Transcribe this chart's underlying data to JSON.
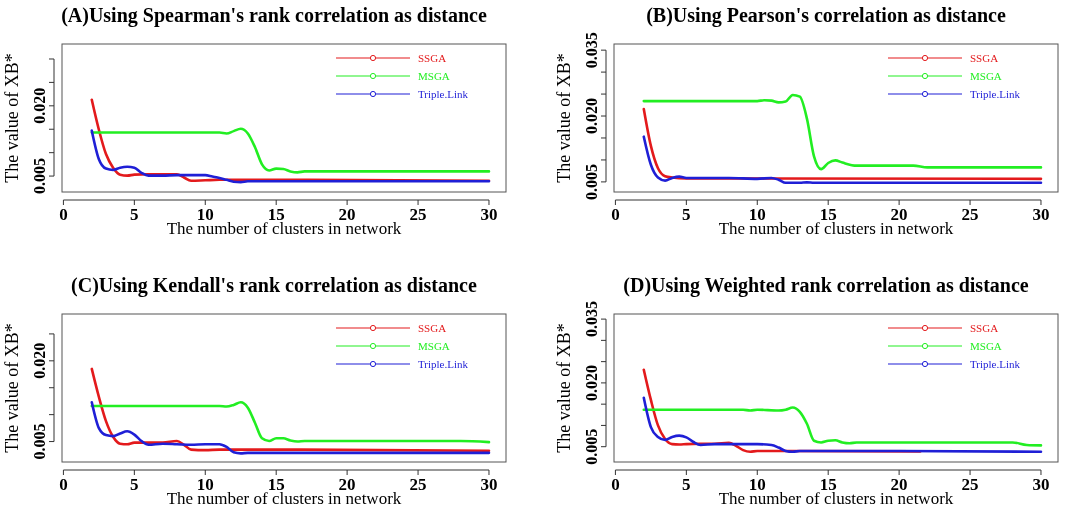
{
  "chart_data": [
    {
      "type": "line",
      "title": "(A)Using Spearman's rank correlation as distance",
      "xlabel": "The number of clusters in network",
      "ylabel": "The value of XB*",
      "xlim": [
        -0.1,
        31.2
      ],
      "xticks": [
        0,
        5,
        10,
        15,
        20,
        25,
        30
      ],
      "ylim": [
        0.0016,
        0.0332
      ],
      "yticks": [
        {
          "value": 0.005,
          "label": "0.005"
        },
        {
          "value": 0.01,
          "label": null
        },
        {
          "value": 0.015,
          "label": null
        },
        {
          "value": 0.02,
          "label": "0.020"
        },
        {
          "value": 0.025,
          "label": null
        },
        {
          "value": 0.03,
          "label": null
        }
      ],
      "legend": "top right",
      "series": [
        {
          "name": "SSGA",
          "color": "#e31a1c",
          "x": [
            2,
            2.5,
            3,
            3.5,
            4,
            4.5,
            5,
            6,
            7,
            8,
            8.5,
            9,
            10,
            11,
            15,
            30
          ],
          "values": [
            0.0213,
            0.0149,
            0.0097,
            0.0068,
            0.0053,
            0.0051,
            0.0053,
            0.0054,
            0.0054,
            0.0054,
            0.0047,
            0.004,
            0.0041,
            0.0042,
            0.0042,
            0.004
          ]
        },
        {
          "name": "MSGA",
          "color": "#22ee22",
          "x": [
            2,
            11,
            11.5,
            12,
            12.5,
            13,
            13.5,
            14,
            14.5,
            15,
            15.5,
            16,
            16.5,
            17,
            18,
            30
          ],
          "values": [
            0.0143,
            0.0143,
            0.0141,
            0.0146,
            0.0151,
            0.0141,
            0.0112,
            0.0075,
            0.0062,
            0.0066,
            0.0065,
            0.006,
            0.0058,
            0.006,
            0.006,
            0.006
          ]
        },
        {
          "name": "Triple.Link",
          "color": "#1f1fd6",
          "x": [
            2,
            2.5,
            3,
            3.5,
            4,
            4.5,
            5,
            5.5,
            6,
            7,
            8,
            9,
            10,
            10.5,
            11,
            11.5,
            12,
            12.5,
            13,
            15,
            30
          ],
          "values": [
            0.0147,
            0.0086,
            0.0066,
            0.0063,
            0.0068,
            0.007,
            0.0068,
            0.0057,
            0.0051,
            0.0051,
            0.0052,
            0.0052,
            0.0052,
            0.0049,
            0.0046,
            0.0042,
            0.0038,
            0.0037,
            0.0039,
            0.0039,
            0.0039
          ]
        }
      ]
    },
    {
      "type": "line",
      "title": "(B)Using Pearson's correlation as distance",
      "xlabel": "The number of clusters in network",
      "ylabel": "The value of XB*",
      "xlim": [
        -0.1,
        31.2
      ],
      "xticks": [
        0,
        5,
        10,
        15,
        20,
        25,
        30
      ],
      "ylim": [
        0.0027,
        0.0364
      ],
      "yticks": [
        {
          "value": 0.005,
          "label": "0.005"
        },
        {
          "value": 0.01,
          "label": null
        },
        {
          "value": 0.015,
          "label": null
        },
        {
          "value": 0.02,
          "label": "0.020"
        },
        {
          "value": 0.025,
          "label": null
        },
        {
          "value": 0.03,
          "label": null
        },
        {
          "value": 0.035,
          "label": "0.035"
        }
      ],
      "legend": "top right",
      "series": [
        {
          "name": "SSGA",
          "color": "#e31a1c",
          "x": [
            2,
            2.5,
            3,
            3.5,
            4,
            5,
            30
          ],
          "values": [
            0.0216,
            0.0132,
            0.0081,
            0.0063,
            0.006,
            0.0058,
            0.0057
          ]
        },
        {
          "name": "MSGA",
          "color": "#22ee22",
          "x": [
            2,
            10,
            10.5,
            11,
            11.5,
            12,
            12.5,
            13,
            13.5,
            14,
            14.5,
            15,
            15.5,
            16,
            17,
            21,
            22,
            30
          ],
          "values": [
            0.0234,
            0.0234,
            0.0236,
            0.0235,
            0.0231,
            0.0233,
            0.0248,
            0.0244,
            0.0194,
            0.0108,
            0.0079,
            0.0093,
            0.0099,
            0.0094,
            0.0087,
            0.0087,
            0.0083,
            0.0083
          ]
        },
        {
          "name": "Triple.Link",
          "color": "#1f1fd6",
          "x": [
            2,
            2.5,
            3,
            3.5,
            4,
            4.5,
            5,
            8,
            10,
            11,
            11.5,
            12,
            13,
            13.5,
            14,
            30
          ],
          "values": [
            0.0153,
            0.0089,
            0.006,
            0.0053,
            0.0059,
            0.0062,
            0.0059,
            0.0059,
            0.0057,
            0.0059,
            0.0055,
            0.0048,
            0.0048,
            0.0049,
            0.0048,
            0.0048
          ]
        }
      ]
    },
    {
      "type": "line",
      "title": "(C)Using Kendall's rank correlation as distance",
      "xlabel": "The number of clusters in network",
      "ylabel": "The value of XB*",
      "xlim": [
        -0.1,
        31.2
      ],
      "xticks": [
        0,
        5,
        10,
        15,
        20,
        25,
        30
      ],
      "ylim": [
        0.0012,
        0.0287
      ],
      "yticks": [
        {
          "value": 0.005,
          "label": "0.005"
        },
        {
          "value": 0.01,
          "label": null
        },
        {
          "value": 0.015,
          "label": null
        },
        {
          "value": 0.02,
          "label": "0.020"
        },
        {
          "value": 0.025,
          "label": null
        }
      ],
      "legend": "top right",
      "series": [
        {
          "name": "SSGA",
          "color": "#e31a1c",
          "x": [
            2,
            2.5,
            3,
            3.5,
            4,
            4.5,
            5,
            6,
            7,
            8,
            8.5,
            9,
            10,
            11,
            15,
            30
          ],
          "values": [
            0.0185,
            0.0133,
            0.0088,
            0.0059,
            0.0046,
            0.0045,
            0.0048,
            0.0048,
            0.0048,
            0.0051,
            0.0044,
            0.0035,
            0.0034,
            0.0035,
            0.0035,
            0.0033
          ]
        },
        {
          "name": "MSGA",
          "color": "#22ee22",
          "x": [
            2,
            11,
            11.5,
            12,
            12.5,
            13,
            13.5,
            14,
            14.5,
            15,
            15.5,
            16,
            16.5,
            17,
            28,
            30
          ],
          "values": [
            0.0116,
            0.0116,
            0.0115,
            0.0118,
            0.0123,
            0.0113,
            0.0085,
            0.0056,
            0.0051,
            0.0056,
            0.0056,
            0.0052,
            0.005,
            0.0051,
            0.0051,
            0.0049
          ]
        },
        {
          "name": "Triple.Link",
          "color": "#1f1fd6",
          "x": [
            2,
            2.5,
            3,
            3.5,
            4,
            4.5,
            5,
            5.5,
            6,
            7,
            8,
            9,
            10,
            11,
            11.5,
            12,
            12.5,
            13,
            14,
            30
          ],
          "values": [
            0.0123,
            0.0075,
            0.0062,
            0.006,
            0.0065,
            0.0069,
            0.0063,
            0.0051,
            0.0044,
            0.0046,
            0.0045,
            0.0044,
            0.0045,
            0.0045,
            0.004,
            0.003,
            0.0028,
            0.0029,
            0.0029,
            0.0029
          ]
        }
      ]
    },
    {
      "type": "line",
      "title": "(D)Using Weighted rank correlation as distance",
      "xlabel": "The number of clusters in network",
      "ylabel": "The value of XB*",
      "xlim": [
        -0.1,
        31.2
      ],
      "xticks": [
        0,
        5,
        10,
        15,
        20,
        25,
        30
      ],
      "ylim": [
        0.0014,
        0.0362
      ],
      "yticks": [
        {
          "value": 0.005,
          "label": "0.005"
        },
        {
          "value": 0.01,
          "label": null
        },
        {
          "value": 0.015,
          "label": null
        },
        {
          "value": 0.02,
          "label": "0.020"
        },
        {
          "value": 0.025,
          "label": null
        },
        {
          "value": 0.03,
          "label": null
        },
        {
          "value": 0.035,
          "label": "0.035"
        }
      ],
      "legend": "top right",
      "series": [
        {
          "name": "SSGA",
          "color": "#e31a1c",
          "x": [
            2,
            2.5,
            3,
            3.5,
            4,
            4.5,
            5,
            6,
            7,
            8,
            8.5,
            9,
            9.5,
            10,
            11,
            12,
            21.5
          ],
          "values": [
            0.0231,
            0.016,
            0.01,
            0.0068,
            0.0056,
            0.0055,
            0.0056,
            0.0057,
            0.0057,
            0.0059,
            0.0052,
            0.0042,
            0.0038,
            0.004,
            0.004,
            0.004,
            0.0039
          ]
        },
        {
          "name": "MSGA",
          "color": "#22ee22",
          "x": [
            2,
            9,
            9.5,
            10,
            11.5,
            12,
            12.5,
            13,
            13.5,
            14,
            14.5,
            15,
            15.5,
            16,
            16.5,
            17,
            28,
            29,
            30
          ],
          "values": [
            0.0137,
            0.0137,
            0.0135,
            0.0137,
            0.0135,
            0.0137,
            0.0142,
            0.0132,
            0.0104,
            0.0064,
            0.006,
            0.0064,
            0.0065,
            0.006,
            0.0058,
            0.006,
            0.006,
            0.0054,
            0.0053
          ]
        },
        {
          "name": "Triple.Link",
          "color": "#1f1fd6",
          "x": [
            2,
            2.5,
            3,
            3.5,
            4,
            4.5,
            5,
            5.5,
            6,
            7,
            10,
            11,
            11.5,
            12,
            12.5,
            13,
            20,
            30
          ],
          "values": [
            0.0165,
            0.0096,
            0.0073,
            0.0066,
            0.0073,
            0.0076,
            0.0072,
            0.0061,
            0.0054,
            0.0056,
            0.0056,
            0.0054,
            0.0048,
            0.004,
            0.0038,
            0.004,
            0.004,
            0.0038
          ]
        }
      ]
    }
  ]
}
